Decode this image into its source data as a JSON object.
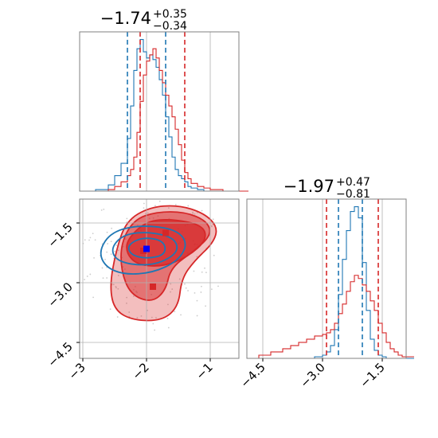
{
  "colors": {
    "blue": "#1f77b4",
    "red": "#d62728",
    "grid": "#b0b0b0",
    "axes": "#808080"
  },
  "chart_data": {
    "type": "corner",
    "parameters": 2,
    "grid": true,
    "panels": {
      "hist_param1": {
        "type": "histogram",
        "title": {
          "value": "−1.74",
          "plus": "+0.35",
          "minus": "−0.34"
        },
        "xlim": [
          -3.05,
          -0.55
        ],
        "blue_quantiles": [
          -2.3,
          -1.7
        ],
        "red_quantiles": [
          -2.1,
          -1.4
        ],
        "x": [
          -3.0,
          -2.8,
          -2.6,
          -2.5,
          -2.4,
          -2.3,
          -2.25,
          -2.2,
          -2.15,
          -2.1,
          -2.05,
          -2.0,
          -1.95,
          -1.9,
          -1.85,
          -1.8,
          -1.75,
          -1.7,
          -1.65,
          -1.6,
          -1.55,
          -1.5,
          -1.45,
          -1.4,
          -1.35,
          -1.3,
          -1.2,
          -1.1,
          -1.0,
          -0.8,
          -0.6
        ],
        "series": [
          {
            "color": "blue",
            "values": [
              0,
              1,
              4,
              10,
              18,
              34,
              55,
              78,
              92,
              98,
              90,
              86,
              88,
              85,
              80,
              72,
              62,
              48,
              35,
              22,
              14,
              10,
              8,
              6,
              3,
              2,
              1,
              0,
              0,
              0,
              0
            ]
          },
          {
            "color": "red",
            "values": [
              0,
              0,
              1,
              3,
              6,
              10,
              14,
              22,
              38,
              58,
              75,
              84,
              88,
              92,
              86,
              78,
              70,
              62,
              55,
              48,
              40,
              30,
              20,
              12,
              8,
              5,
              3,
              2,
              1,
              0,
              0
            ]
          }
        ]
      },
      "hist_param2": {
        "type": "histogram",
        "title": {
          "value": "−1.97",
          "plus": "+0.47",
          "minus": "−0.81"
        },
        "xlim": [
          -4.9,
          -0.9
        ],
        "x_ticks": [
          "−4.5",
          "−3.0",
          "−1.5"
        ],
        "x_tick_values": [
          -4.5,
          -3.0,
          -1.5
        ],
        "blue_quantiles": [
          -2.6,
          -2.0
        ],
        "red_quantiles": [
          -2.9,
          -1.6
        ],
        "x": [
          -4.6,
          -4.3,
          -4.0,
          -3.8,
          -3.6,
          -3.4,
          -3.2,
          -3.0,
          -2.9,
          -2.8,
          -2.7,
          -2.6,
          -2.5,
          -2.4,
          -2.3,
          -2.2,
          -2.1,
          -2.0,
          -1.9,
          -1.8,
          -1.7,
          -1.6,
          -1.5,
          -1.4,
          -1.3,
          -1.2,
          -1.1,
          -1.0
        ],
        "series": [
          {
            "color": "blue",
            "values": [
              0,
              0,
              0,
              0,
              0,
              0,
              1,
              2,
              4,
              8,
              18,
              40,
              62,
              80,
              92,
              95,
              88,
              60,
              30,
              12,
              5,
              2,
              1,
              0,
              0,
              0,
              0,
              0
            ]
          },
          {
            "color": "red",
            "values": [
              2,
              4,
              6,
              8,
              10,
              12,
              14,
              15,
              16,
              18,
              22,
              28,
              34,
              42,
              48,
              52,
              50,
              46,
              42,
              36,
              30,
              22,
              16,
              10,
              6,
              4,
              2,
              1
            ]
          }
        ]
      },
      "joint": {
        "type": "contour",
        "xlim": [
          -3.05,
          -0.55
        ],
        "ylim": [
          -4.9,
          -0.9
        ],
        "x_ticks": [
          "−3",
          "−2",
          "−1"
        ],
        "x_tick_values": [
          -3,
          -2,
          -1
        ],
        "y_ticks": [
          "−1.5",
          "−3.0",
          "−4.5"
        ],
        "y_tick_values": [
          -1.5,
          -3.0,
          -4.5
        ],
        "blue_marker": {
          "x": -2.0,
          "y": -2.15
        },
        "red_markers": [
          {
            "x": -1.7,
            "y": -1.75
          },
          {
            "x": -1.9,
            "y": -3.1
          },
          {
            "x": -2.05,
            "y": -2.2
          }
        ],
        "red_contours": [
          {
            "level": "outer",
            "points": [
              [
                -2.48,
                -2.2
              ],
              [
                -2.32,
                -1.45
              ],
              [
                -1.95,
                -1.1
              ],
              [
                -1.5,
                -1.05
              ],
              [
                -1.1,
                -1.25
              ],
              [
                -0.88,
                -1.6
              ],
              [
                -0.95,
                -2.0
              ],
              [
                -1.25,
                -2.45
              ],
              [
                -1.45,
                -2.9
              ],
              [
                -1.5,
                -3.6
              ],
              [
                -1.75,
                -3.95
              ],
              [
                -2.2,
                -3.95
              ],
              [
                -2.5,
                -3.7
              ],
              [
                -2.58,
                -3.1
              ]
            ]
          },
          {
            "level": "middle",
            "points": [
              [
                -2.4,
                -2.0
              ],
              [
                -2.2,
                -1.42
              ],
              [
                -1.85,
                -1.22
              ],
              [
                -1.4,
                -1.22
              ],
              [
                -1.05,
                -1.45
              ],
              [
                -0.98,
                -1.8
              ],
              [
                -1.25,
                -2.2
              ],
              [
                -1.62,
                -2.62
              ],
              [
                -1.7,
                -3.2
              ],
              [
                -1.92,
                -3.5
              ],
              [
                -2.25,
                -3.3
              ],
              [
                -2.4,
                -2.7
              ]
            ]
          },
          {
            "level": "inner",
            "points": [
              [
                -2.3,
                -1.9
              ],
              [
                -2.0,
                -1.45
              ],
              [
                -1.6,
                -1.4
              ],
              [
                -1.12,
                -1.55
              ],
              [
                -1.05,
                -1.92
              ],
              [
                -1.35,
                -2.35
              ],
              [
                -1.75,
                -2.6
              ],
              [
                -2.15,
                -2.55
              ],
              [
                -2.32,
                -2.25
              ]
            ]
          }
        ],
        "blue_contours": [
          {
            "level": "outer",
            "points": [
              [
                -2.75,
                -2.2
              ],
              [
                -2.55,
                -1.72
              ],
              [
                -2.1,
                -1.55
              ],
              [
                -1.55,
                -1.65
              ],
              [
                -1.35,
                -2.0
              ],
              [
                -1.5,
                -2.45
              ],
              [
                -1.9,
                -2.75
              ],
              [
                -2.35,
                -2.8
              ],
              [
                -2.65,
                -2.6
              ]
            ]
          },
          {
            "level": "middle",
            "points": [
              [
                -2.55,
                -2.1
              ],
              [
                -2.35,
                -1.78
              ],
              [
                -1.95,
                -1.72
              ],
              [
                -1.55,
                -1.88
              ],
              [
                -1.5,
                -2.25
              ],
              [
                -1.85,
                -2.55
              ],
              [
                -2.25,
                -2.55
              ],
              [
                -2.5,
                -2.4
              ]
            ]
          },
          {
            "level": "inner",
            "points": [
              [
                -2.3,
                -2.05
              ],
              [
                -2.05,
                -1.85
              ],
              [
                -1.72,
                -1.95
              ],
              [
                -1.7,
                -2.3
              ],
              [
                -2.0,
                -2.4
              ],
              [
                -2.25,
                -2.3
              ]
            ]
          }
        ]
      }
    }
  }
}
